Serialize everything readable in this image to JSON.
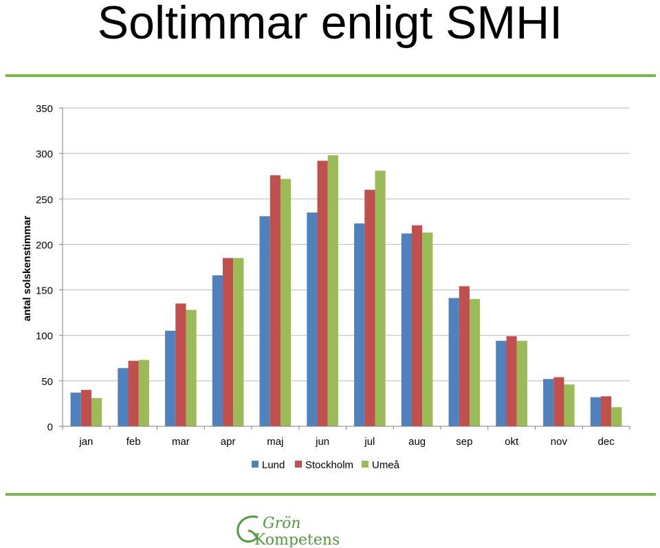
{
  "title": "Soltimmar enligt SMHI",
  "colors": {
    "rule": "#77b94a",
    "logo": "#4f9a3d",
    "axis": "#7f7f7f",
    "grid": "#b9b9b9"
  },
  "logo": {
    "line1": "Grön",
    "line2": "Kompetens"
  },
  "chart_data": {
    "type": "bar",
    "title": "",
    "xlabel": "",
    "ylabel": "antal solskenstimmar",
    "ylim": [
      0,
      350
    ],
    "yticks": [
      0,
      50,
      100,
      150,
      200,
      250,
      300,
      350
    ],
    "grid": true,
    "legend": "bottom",
    "categories": [
      "jan",
      "feb",
      "mar",
      "apr",
      "maj",
      "jun",
      "jul",
      "aug",
      "sep",
      "okt",
      "nov",
      "dec"
    ],
    "series": [
      {
        "name": "Lund",
        "color": "#4f81bd",
        "values": [
          37,
          64,
          105,
          166,
          231,
          235,
          223,
          212,
          141,
          94,
          52,
          32
        ]
      },
      {
        "name": "Stockholm",
        "color": "#c0504d",
        "values": [
          40,
          72,
          135,
          185,
          276,
          292,
          260,
          221,
          154,
          99,
          54,
          33
        ]
      },
      {
        "name": "Umeå",
        "color": "#9bbb59",
        "values": [
          31,
          73,
          128,
          185,
          272,
          298,
          281,
          213,
          140,
          94,
          46,
          21
        ]
      }
    ]
  }
}
